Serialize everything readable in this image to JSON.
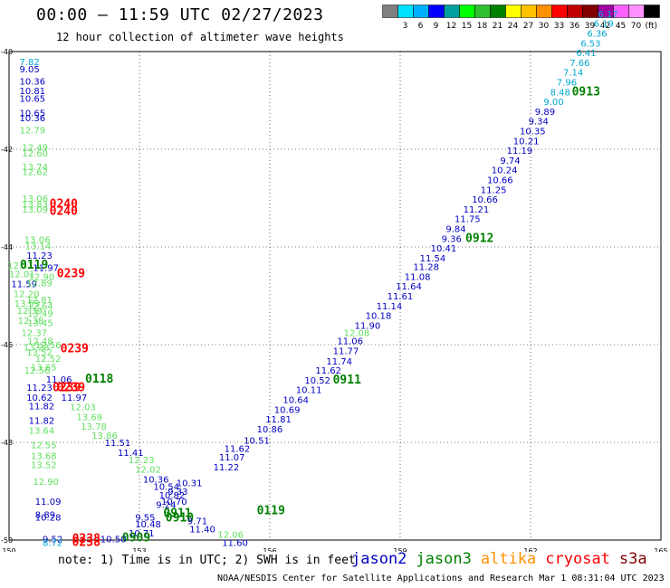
{
  "header": {
    "title": "00:00 – 11:59 UTC 02/27/2023",
    "subtitle": "12 hour collection of altimeter wave heights"
  },
  "colorbar": {
    "colors": [
      "#808080",
      "#00e0ff",
      "#00b0ff",
      "#0000ff",
      "#00a0a0",
      "#00ff00",
      "#30c030",
      "#008000",
      "#ffff00",
      "#ffc000",
      "#ff9000",
      "#ff0000",
      "#c00000",
      "#800000",
      "#a000a0",
      "#ff60ff",
      "#ff90ff",
      "#000000"
    ],
    "labels": [
      "3",
      "6",
      "9",
      "12",
      "15",
      "18",
      "21",
      "24",
      "27",
      "30",
      "33",
      "36",
      "39",
      "42",
      "45",
      "70"
    ],
    "unit": "(ft)"
  },
  "map": {
    "lon_ticks": [
      "150",
      "153",
      "156",
      "159",
      "162",
      "165"
    ],
    "lat_ticks": [
      "-40",
      "-42",
      "-44",
      "-46",
      "-48",
      "-50"
    ]
  },
  "satellite_colors": {
    "jason2": "#0000c0",
    "jason3": "#008000",
    "altika": "#ff9000",
    "cryosat": "#ff0000",
    "s3a": "#800000",
    "lightgreen": "#60e060",
    "cyan": "#00a8d0"
  },
  "wave_labels": [
    {
      "t": "7.82",
      "lon": 150.24,
      "lat": -40.2,
      "c": "cyan"
    },
    {
      "t": "9.05",
      "lon": 150.24,
      "lat": -40.35,
      "c": "jason2"
    },
    {
      "t": "10.36",
      "lon": 150.24,
      "lat": -40.6,
      "c": "jason2"
    },
    {
      "t": "10.81",
      "lon": 150.24,
      "lat": -40.8,
      "c": "jason2"
    },
    {
      "t": "10.65",
      "lon": 150.24,
      "lat": -40.95,
      "c": "jason2"
    },
    {
      "t": "10.65",
      "lon": 150.24,
      "lat": -41.25,
      "c": "jason2"
    },
    {
      "t": "10.36",
      "lon": 150.24,
      "lat": -41.35,
      "c": "jason2"
    },
    {
      "t": "12.79",
      "lon": 150.24,
      "lat": -41.6,
      "c": "lightgreen"
    },
    {
      "t": "12.49",
      "lon": 150.3,
      "lat": -41.95,
      "c": "lightgreen"
    },
    {
      "t": "12.60",
      "lon": 150.3,
      "lat": -42.07,
      "c": "lightgreen"
    },
    {
      "t": "13.74",
      "lon": 150.3,
      "lat": -42.35,
      "c": "lightgreen"
    },
    {
      "t": "12.62",
      "lon": 150.3,
      "lat": -42.45,
      "c": "lightgreen"
    },
    {
      "t": "13.06",
      "lon": 150.3,
      "lat": -43.0,
      "c": "lightgreen"
    },
    {
      "t": "13.83",
      "lon": 150.3,
      "lat": -43.12,
      "c": "lightgreen"
    },
    {
      "t": "13.09",
      "lon": 150.3,
      "lat": -43.22,
      "c": "lightgreen"
    },
    {
      "t": "0240",
      "lon": 150.93,
      "lat": -43.12,
      "c": "cryosat",
      "b": 1
    },
    {
      "t": "0240",
      "lon": 150.93,
      "lat": -43.27,
      "c": "cryosat",
      "b": 1
    },
    {
      "t": "13.06",
      "lon": 150.35,
      "lat": -43.84,
      "c": "lightgreen"
    },
    {
      "t": "13.14",
      "lon": 150.37,
      "lat": -43.97,
      "c": "lightgreen"
    },
    {
      "t": "11.23",
      "lon": 150.4,
      "lat": -44.17,
      "c": "jason2"
    },
    {
      "t": "12.51",
      "lon": 149.96,
      "lat": -44.37,
      "c": "lightgreen"
    },
    {
      "t": "0119",
      "lon": 150.25,
      "lat": -44.37,
      "c": "jason3",
      "b": 1
    },
    {
      "t": "11.97",
      "lon": 150.55,
      "lat": -44.42,
      "c": "jason2"
    },
    {
      "t": "12.01",
      "lon": 150.0,
      "lat": -44.55,
      "c": "lightgreen"
    },
    {
      "t": "12.90",
      "lon": 150.45,
      "lat": -44.6,
      "c": "lightgreen"
    },
    {
      "t": "11.59",
      "lon": 150.05,
      "lat": -44.75,
      "c": "jason2"
    },
    {
      "t": "12.89",
      "lon": 150.4,
      "lat": -44.73,
      "c": "lightgreen"
    },
    {
      "t": "0239",
      "lon": 151.1,
      "lat": -44.55,
      "c": "cryosat",
      "b": 1
    },
    {
      "t": "12.20",
      "lon": 150.1,
      "lat": -44.95,
      "c": "lightgreen"
    },
    {
      "t": "12.81",
      "lon": 150.4,
      "lat": -45.07,
      "c": "lightgreen"
    },
    {
      "t": "13.53",
      "lon": 150.12,
      "lat": -45.15,
      "c": "lightgreen"
    },
    {
      "t": "12.64",
      "lon": 150.42,
      "lat": -45.2,
      "c": "lightgreen"
    },
    {
      "t": "12.39",
      "lon": 150.18,
      "lat": -45.3,
      "c": "lightgreen"
    },
    {
      "t": "13.49",
      "lon": 150.42,
      "lat": -45.35,
      "c": "lightgreen"
    },
    {
      "t": "12.38",
      "lon": 150.2,
      "lat": -45.5,
      "c": "lightgreen"
    },
    {
      "t": "13.45",
      "lon": 150.42,
      "lat": -45.55,
      "c": "lightgreen"
    },
    {
      "t": "12.37",
      "lon": 150.28,
      "lat": -45.75,
      "c": "lightgreen"
    },
    {
      "t": "12.48",
      "lon": 150.42,
      "lat": -45.92,
      "c": "lightgreen"
    },
    {
      "t": "12.56",
      "lon": 150.6,
      "lat": -46.0,
      "c": "lightgreen"
    },
    {
      "t": "13.28",
      "lon": 150.33,
      "lat": -46.05,
      "c": "lightgreen"
    },
    {
      "t": "0239",
      "lon": 151.18,
      "lat": -46.08,
      "c": "cryosat",
      "b": 1
    },
    {
      "t": "13.52",
      "lon": 150.4,
      "lat": -46.15,
      "c": "lightgreen"
    },
    {
      "t": "12.52",
      "lon": 150.6,
      "lat": -46.28,
      "c": "lightgreen"
    },
    {
      "t": "13.65",
      "lon": 150.5,
      "lat": -46.45,
      "c": "lightgreen"
    },
    {
      "t": "12.56",
      "lon": 150.35,
      "lat": -46.52,
      "c": "lightgreen"
    },
    {
      "t": "11.06",
      "lon": 150.85,
      "lat": -46.7,
      "c": "jason2"
    },
    {
      "t": "0118",
      "lon": 151.75,
      "lat": -46.7,
      "c": "jason3",
      "b": 1
    },
    {
      "t": "11.23",
      "lon": 150.4,
      "lat": -46.87,
      "c": "jason2"
    },
    {
      "t": "0239",
      "lon": 151.0,
      "lat": -46.88,
      "c": "cryosat",
      "b": 1
    },
    {
      "t": "0239",
      "lon": 151.1,
      "lat": -46.88,
      "c": "cryosat",
      "b": 1
    },
    {
      "t": "10.62",
      "lon": 150.4,
      "lat": -47.07,
      "c": "jason2"
    },
    {
      "t": "11.97",
      "lon": 151.2,
      "lat": -47.07,
      "c": "jason2"
    },
    {
      "t": "11.82",
      "lon": 150.45,
      "lat": -47.25,
      "c": "jason2"
    },
    {
      "t": "12.03",
      "lon": 151.4,
      "lat": -47.27,
      "c": "lightgreen"
    },
    {
      "t": "13.69",
      "lon": 151.55,
      "lat": -47.47,
      "c": "lightgreen"
    },
    {
      "t": "11.82",
      "lon": 150.45,
      "lat": -47.55,
      "c": "jason2"
    },
    {
      "t": "13.78",
      "lon": 151.65,
      "lat": -47.67,
      "c": "lightgreen"
    },
    {
      "t": "13.64",
      "lon": 150.45,
      "lat": -47.75,
      "c": "lightgreen"
    },
    {
      "t": "13.86",
      "lon": 151.9,
      "lat": -47.85,
      "c": "lightgreen"
    },
    {
      "t": "12.55",
      "lon": 150.5,
      "lat": -48.05,
      "c": "lightgreen"
    },
    {
      "t": "11.51",
      "lon": 152.2,
      "lat": -48.0,
      "c": "jason2"
    },
    {
      "t": "11.41",
      "lon": 152.5,
      "lat": -48.2,
      "c": "jason2"
    },
    {
      "t": "13.68",
      "lon": 150.5,
      "lat": -48.27,
      "c": "lightgreen"
    },
    {
      "t": "12.23",
      "lon": 152.75,
      "lat": -48.35,
      "c": "lightgreen"
    },
    {
      "t": "13.52",
      "lon": 150.5,
      "lat": -48.45,
      "c": "lightgreen"
    },
    {
      "t": "12.02",
      "lon": 152.9,
      "lat": -48.55,
      "c": "lightgreen"
    },
    {
      "t": "12.90",
      "lon": 150.55,
      "lat": -48.8,
      "c": "lightgreen"
    },
    {
      "t": "10.36",
      "lon": 153.08,
      "lat": -48.75,
      "c": "jason2"
    },
    {
      "t": "10.54",
      "lon": 153.32,
      "lat": -48.9,
      "c": "jason2"
    },
    {
      "t": "10.31",
      "lon": 153.85,
      "lat": -48.82,
      "c": "jason2"
    },
    {
      "t": "9.33",
      "lon": 153.65,
      "lat": -49.0,
      "c": "jason2"
    },
    {
      "t": "10.82",
      "lon": 153.45,
      "lat": -49.07,
      "c": "jason2"
    },
    {
      "t": "11.09",
      "lon": 150.6,
      "lat": -49.2,
      "c": "jason2"
    },
    {
      "t": "10.70",
      "lon": 153.5,
      "lat": -49.2,
      "c": "jason2"
    },
    {
      "t": "9.24",
      "lon": 153.38,
      "lat": -49.27,
      "c": "jason2"
    },
    {
      "t": "8.89",
      "lon": 150.6,
      "lat": -49.47,
      "c": "jason2"
    },
    {
      "t": "10.28",
      "lon": 150.6,
      "lat": -49.53,
      "c": "jason2"
    },
    {
      "t": "0911",
      "lon": 153.55,
      "lat": -49.45,
      "c": "jason3",
      "b": 1
    },
    {
      "t": "0910",
      "lon": 153.6,
      "lat": -49.55,
      "c": "jason3",
      "b": 1
    },
    {
      "t": "0119",
      "lon": 155.7,
      "lat": -49.4,
      "c": "jason3",
      "b": 1
    },
    {
      "t": "9.55",
      "lon": 152.9,
      "lat": -49.53,
      "c": "jason2"
    },
    {
      "t": "9.71",
      "lon": 154.1,
      "lat": -49.6,
      "c": "jason2"
    },
    {
      "t": "10.48",
      "lon": 152.9,
      "lat": -49.67,
      "c": "jason2"
    },
    {
      "t": "11.40",
      "lon": 154.15,
      "lat": -49.77,
      "c": "jason2"
    },
    {
      "t": "10.71",
      "lon": 152.75,
      "lat": -49.85,
      "c": "jason2"
    },
    {
      "t": "12.06",
      "lon": 154.8,
      "lat": -49.88,
      "c": "lightgreen"
    },
    {
      "t": "0909",
      "lon": 152.6,
      "lat": -49.95,
      "c": "jason3",
      "b": 1
    },
    {
      "t": "10.50",
      "lon": 152.1,
      "lat": -49.97,
      "c": "jason2"
    },
    {
      "t": "9.52",
      "lon": 150.77,
      "lat": -49.97,
      "c": "jason2"
    },
    {
      "t": "8.72",
      "lon": 150.77,
      "lat": -50.05,
      "c": "cyan"
    },
    {
      "t": "0238",
      "lon": 151.45,
      "lat": -49.97,
      "c": "cryosat",
      "b": 1
    },
    {
      "t": "0238",
      "lon": 151.45,
      "lat": -50.05,
      "c": "cryosat",
      "b": 1
    },
    {
      "t": "11.60",
      "lon": 154.9,
      "lat": -50.05,
      "c": "jason2"
    },
    {
      "t": "11.62",
      "lon": 154.95,
      "lat": -48.12,
      "c": "jason2"
    },
    {
      "t": "11.22",
      "lon": 154.7,
      "lat": -48.5,
      "c": "jason2"
    },
    {
      "t": "11.07",
      "lon": 154.83,
      "lat": -48.3,
      "c": "jason2"
    },
    {
      "t": "10.51",
      "lon": 155.4,
      "lat": -47.95,
      "c": "jason2"
    },
    {
      "t": "10.86",
      "lon": 155.7,
      "lat": -47.72,
      "c": "jason2"
    },
    {
      "t": "11.81",
      "lon": 155.9,
      "lat": -47.52,
      "c": "jason2"
    },
    {
      "t": "10.69",
      "lon": 156.1,
      "lat": -47.32,
      "c": "jason2"
    },
    {
      "t": "10.64",
      "lon": 156.3,
      "lat": -47.12,
      "c": "jason2"
    },
    {
      "t": "10.11",
      "lon": 156.6,
      "lat": -46.92,
      "c": "jason2"
    },
    {
      "t": "10.52",
      "lon": 156.8,
      "lat": -46.72,
      "c": "jason2"
    },
    {
      "t": "0911",
      "lon": 157.45,
      "lat": -46.72,
      "c": "jason3",
      "b": 1
    },
    {
      "t": "11.62",
      "lon": 157.05,
      "lat": -46.52,
      "c": "jason2"
    },
    {
      "t": "11.74",
      "lon": 157.3,
      "lat": -46.33,
      "c": "jason2"
    },
    {
      "t": "11.77",
      "lon": 157.45,
      "lat": -46.12,
      "c": "jason2"
    },
    {
      "t": "11.06",
      "lon": 157.55,
      "lat": -45.92,
      "c": "jason2"
    },
    {
      "t": "12.08",
      "lon": 157.7,
      "lat": -45.75,
      "c": "lightgreen"
    },
    {
      "t": "11.90",
      "lon": 157.95,
      "lat": -45.6,
      "c": "jason2"
    },
    {
      "t": "10.18",
      "lon": 158.2,
      "lat": -45.4,
      "c": "jason2"
    },
    {
      "t": "11.14",
      "lon": 158.45,
      "lat": -45.2,
      "c": "jason2"
    },
    {
      "t": "11.61",
      "lon": 158.7,
      "lat": -45.0,
      "c": "jason2"
    },
    {
      "t": "11.64",
      "lon": 158.9,
      "lat": -44.8,
      "c": "jason2"
    },
    {
      "t": "11.08",
      "lon": 159.1,
      "lat": -44.6,
      "c": "jason2"
    },
    {
      "t": "11.28",
      "lon": 159.3,
      "lat": -44.4,
      "c": "jason2"
    },
    {
      "t": "11.54",
      "lon": 159.45,
      "lat": -44.22,
      "c": "jason2"
    },
    {
      "t": "10.41",
      "lon": 159.7,
      "lat": -44.02,
      "c": "jason2"
    },
    {
      "t": "9.36",
      "lon": 159.95,
      "lat": -43.82,
      "c": "jason2"
    },
    {
      "t": "0912",
      "lon": 160.5,
      "lat": -43.82,
      "c": "jason3",
      "b": 1
    },
    {
      "t": "9.84",
      "lon": 160.05,
      "lat": -43.62,
      "c": "jason2"
    },
    {
      "t": "11.75",
      "lon": 160.25,
      "lat": -43.42,
      "c": "jason2"
    },
    {
      "t": "11.21",
      "lon": 160.45,
      "lat": -43.22,
      "c": "jason2"
    },
    {
      "t": "10.66",
      "lon": 160.65,
      "lat": -43.02,
      "c": "jason2"
    },
    {
      "t": "11.25",
      "lon": 160.85,
      "lat": -42.82,
      "c": "jason2"
    },
    {
      "t": "10.66",
      "lon": 161.0,
      "lat": -42.62,
      "c": "jason2"
    },
    {
      "t": "10.24",
      "lon": 161.1,
      "lat": -42.42,
      "c": "jason2"
    },
    {
      "t": "9.74",
      "lon": 161.3,
      "lat": -42.22,
      "c": "jason2"
    },
    {
      "t": "11.19",
      "lon": 161.45,
      "lat": -42.02,
      "c": "jason2"
    },
    {
      "t": "10.21",
      "lon": 161.6,
      "lat": -41.82,
      "c": "jason2"
    },
    {
      "t": "10.35",
      "lon": 161.75,
      "lat": -41.62,
      "c": "jason2"
    },
    {
      "t": "9.34",
      "lon": 161.95,
      "lat": -41.42,
      "c": "jason2"
    },
    {
      "t": "9.89",
      "lon": 162.1,
      "lat": -41.22,
      "c": "jason2"
    },
    {
      "t": "9.00",
      "lon": 162.3,
      "lat": -41.02,
      "c": "cyan"
    },
    {
      "t": "0913",
      "lon": 162.95,
      "lat": -40.82,
      "c": "jason3",
      "b": 1
    },
    {
      "t": "8.48",
      "lon": 162.45,
      "lat": -40.82,
      "c": "cyan"
    },
    {
      "t": "7.96",
      "lon": 162.6,
      "lat": -40.62,
      "c": "cyan"
    },
    {
      "t": "7.14",
      "lon": 162.75,
      "lat": -40.42,
      "c": "cyan"
    },
    {
      "t": "7.66",
      "lon": 162.9,
      "lat": -40.22,
      "c": "cyan"
    },
    {
      "t": "6.41",
      "lon": 163.05,
      "lat": -40.02,
      "c": "cyan"
    },
    {
      "t": "6.53",
      "lon": 163.15,
      "lat": -39.82,
      "c": "cyan"
    },
    {
      "t": "6.36",
      "lon": 163.3,
      "lat": -39.62,
      "c": "cyan"
    },
    {
      "t": "6.19",
      "lon": 163.45,
      "lat": -39.42,
      "c": "cyan"
    },
    {
      "t": "6.17",
      "lon": 163.55,
      "lat": -39.22,
      "c": "cyan"
    }
  ],
  "note": "note: 1) Time is in UTC; 2) SWH is in feet",
  "legend": [
    {
      "name": "jason2",
      "c": "jason2"
    },
    {
      "name": "jason3",
      "c": "jason3"
    },
    {
      "name": "altika",
      "c": "altika"
    },
    {
      "name": "cryosat",
      "c": "cryosat"
    },
    {
      "name": "s3a",
      "c": "s3a"
    }
  ],
  "footer": "NOAA/NESDIS Center for Satellite Applications and Research   Mar  1 08:31:04 UTC 2023"
}
